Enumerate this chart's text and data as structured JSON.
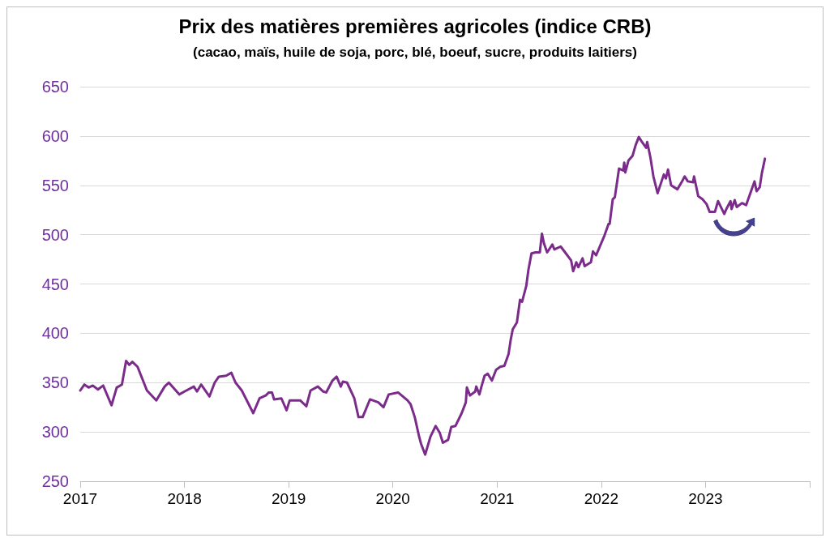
{
  "chart_data": {
    "type": "line",
    "title": "Prix des matières premières agricoles (indice CRB)",
    "subtitle": "(cacao, maïs, huile de soja, porc, blé, boeuf, sucre, produits laitiers)",
    "x": [
      2017.0,
      2017.04,
      2017.08,
      2017.12,
      2017.17,
      2017.22,
      2017.3,
      2017.35,
      2017.4,
      2017.44,
      2017.47,
      2017.5,
      2017.55,
      2017.64,
      2017.73,
      2017.81,
      2017.85,
      2017.95,
      2018.0,
      2018.09,
      2018.12,
      2018.16,
      2018.24,
      2018.29,
      2018.33,
      2018.4,
      2018.45,
      2018.49,
      2018.55,
      2018.66,
      2018.72,
      2018.78,
      2018.81,
      2018.84,
      2018.86,
      2018.93,
      2018.98,
      2019.01,
      2019.11,
      2019.17,
      2019.21,
      2019.28,
      2019.33,
      2019.36,
      2019.42,
      2019.46,
      2019.5,
      2019.52,
      2019.56,
      2019.63,
      2019.67,
      2019.71,
      2019.78,
      2019.86,
      2019.91,
      2019.96,
      2020.05,
      2020.14,
      2020.17,
      2020.21,
      2020.25,
      2020.27,
      2020.31,
      2020.36,
      2020.41,
      2020.45,
      2020.48,
      2020.53,
      2020.56,
      2020.6,
      2020.66,
      2020.7,
      2020.71,
      2020.74,
      2020.79,
      2020.8,
      2020.83,
      2020.85,
      2020.88,
      2020.91,
      2020.95,
      2020.99,
      2021.03,
      2021.07,
      2021.11,
      2021.13,
      2021.15,
      2021.19,
      2021.22,
      2021.24,
      2021.28,
      2021.3,
      2021.33,
      2021.37,
      2021.41,
      2021.43,
      2021.45,
      2021.48,
      2021.53,
      2021.55,
      2021.61,
      2021.66,
      2021.71,
      2021.73,
      2021.76,
      2021.78,
      2021.82,
      2021.84,
      2021.9,
      2021.92,
      2021.95,
      2022.03,
      2022.07,
      2022.08,
      2022.11,
      2022.13,
      2022.17,
      2022.21,
      2022.22,
      2022.23,
      2022.26,
      2022.3,
      2022.33,
      2022.36,
      2022.39,
      2022.43,
      2022.44,
      2022.47,
      2022.5,
      2022.54,
      2022.6,
      2022.62,
      2022.64,
      2022.67,
      2022.73,
      2022.77,
      2022.8,
      2022.83,
      2022.88,
      2022.89,
      2022.93,
      2022.97,
      2023.01,
      2023.04,
      2023.09,
      2023.12,
      2023.18,
      2023.2,
      2023.24,
      2023.25,
      2023.28,
      2023.3,
      2023.35,
      2023.39,
      2023.43,
      2023.47,
      2023.49,
      2023.52,
      2023.54,
      2023.57
    ],
    "series": [
      {
        "color": "#7b2c8a",
        "values": [
          342,
          348,
          345,
          347,
          343,
          347,
          327,
          345,
          348,
          372,
          368,
          371,
          366,
          342,
          332,
          346,
          350,
          338,
          341,
          346,
          341,
          348,
          336,
          350,
          356,
          357,
          360,
          350,
          342,
          319,
          334,
          337,
          340,
          340,
          333,
          334,
          322,
          332,
          332,
          326,
          342,
          346,
          341,
          340,
          352,
          356,
          346,
          351,
          350,
          334,
          315,
          315,
          333,
          330,
          325,
          338,
          340,
          332,
          328,
          315,
          296,
          288,
          277,
          295,
          306,
          299,
          289,
          292,
          305,
          306,
          319,
          330,
          345,
          337,
          341,
          346,
          338,
          346,
          357,
          359,
          352,
          363,
          366,
          367,
          379,
          393,
          404,
          411,
          434,
          432,
          448,
          464,
          481,
          482,
          482,
          501,
          491,
          482,
          490,
          485,
          488,
          481,
          474,
          463,
          472,
          467,
          476,
          468,
          472,
          483,
          479,
          499,
          511,
          511,
          536,
          538,
          567,
          565,
          573,
          563,
          575,
          580,
          591,
          599,
          594,
          588,
          594,
          579,
          559,
          542,
          561,
          557,
          566,
          550,
          546,
          553,
          559,
          554,
          553,
          559,
          539,
          536,
          531,
          523,
          523,
          534,
          521,
          526,
          534,
          526,
          535,
          528,
          532,
          530,
          542,
          554,
          544,
          548,
          562,
          577
        ]
      }
    ],
    "xlim": [
      2017,
      2024
    ],
    "xticks": [
      2017,
      2018,
      2019,
      2020,
      2021,
      2022,
      2023,
      {
        "value": 2024,
        "label": null
      }
    ],
    "ylim": [
      250,
      650
    ],
    "yticks": [
      250,
      300,
      350,
      400,
      450,
      500,
      550,
      600,
      650
    ],
    "grid": "y",
    "marker": "none",
    "line_style": "solid"
  }
}
